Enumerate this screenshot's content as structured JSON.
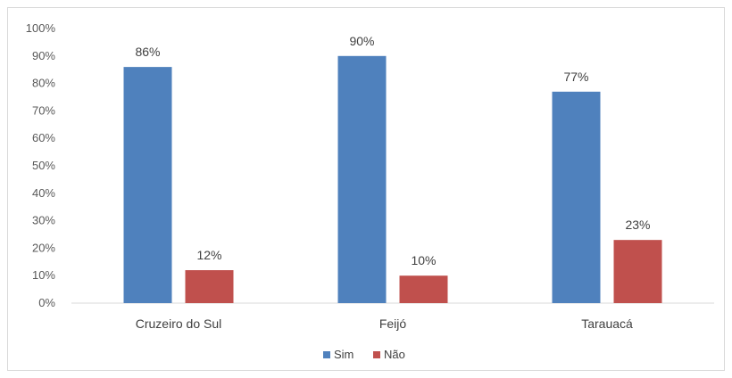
{
  "chart_data": {
    "type": "bar",
    "title": "",
    "xlabel": "",
    "ylabel": "",
    "categories": [
      "Cruzeiro do Sul",
      "Feijó",
      "Tarauacá"
    ],
    "series": [
      {
        "name": "Sim",
        "color": "#4f81bd",
        "values": [
          86,
          90,
          77
        ],
        "labels": [
          "86%",
          "90%",
          "77%"
        ]
      },
      {
        "name": "Não",
        "color": "#c0504d",
        "values": [
          12,
          10,
          23
        ],
        "labels": [
          "12%",
          "10%",
          "23%"
        ]
      }
    ],
    "ylim": [
      0,
      100
    ],
    "y_ticks": [
      "0%",
      "10%",
      "20%",
      "30%",
      "40%",
      "50%",
      "60%",
      "70%",
      "80%",
      "90%",
      "100%"
    ],
    "grid": false,
    "legend_position": "bottom"
  }
}
